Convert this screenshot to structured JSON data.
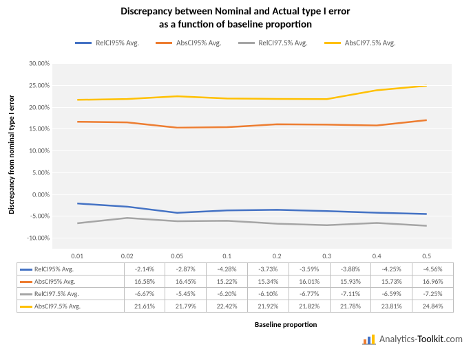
{
  "title_line1": "Discrepancy between Nominal and Actual type I error",
  "title_line2": "as a function of baseline proportion",
  "title_fontsize": 15,
  "y_axis_label": "Discrepancy from nominal type I error",
  "x_axis_label": "Baseline proportion",
  "background_color": "#ffffff",
  "plot_background": "#f2f2f2",
  "grid_color": "#ffffff",
  "tick_font_color": "#595959",
  "tick_fontsize": 10,
  "y_min": -12.5,
  "y_max": 30.0,
  "y_ticks": [
    -10.0,
    -5.0,
    0.0,
    5.0,
    10.0,
    15.0,
    20.0,
    25.0,
    30.0
  ],
  "y_tick_labels": [
    "-10.00%",
    "-5.00%",
    "0.00%",
    "5.00%",
    "10.00%",
    "15.00%",
    "20.00%",
    "25.00%",
    "30.00%"
  ],
  "categories": [
    "0.01",
    "0.02",
    "0.05",
    "0.1",
    "0.2",
    "0.3",
    "0.4",
    "0.5"
  ],
  "series": [
    {
      "name": "RelCI95% Avg.",
      "color": "#4472c4",
      "values": [
        -2.14,
        -2.87,
        -4.28,
        -3.73,
        -3.59,
        -3.88,
        -4.25,
        -4.56
      ],
      "display": [
        "-2.14%",
        "-2.87%",
        "-4.28%",
        "-3.73%",
        "-3.59%",
        "-3.88%",
        "-4.25%",
        "-4.56%"
      ]
    },
    {
      "name": "AbsCI95% Avg.",
      "color": "#ed7d31",
      "values": [
        16.58,
        16.45,
        15.22,
        15.34,
        16.01,
        15.93,
        15.73,
        16.96
      ],
      "display": [
        "16.58%",
        "16.45%",
        "15.22%",
        "15.34%",
        "16.01%",
        "15.93%",
        "15.73%",
        "16.96%"
      ]
    },
    {
      "name": "RelCI97.5% Avg.",
      "color": "#a5a5a5",
      "values": [
        -6.67,
        -5.45,
        -6.2,
        -6.1,
        -6.77,
        -7.11,
        -6.59,
        -7.25
      ],
      "display": [
        "-6.67%",
        "-5.45%",
        "-6.20%",
        "-6.10%",
        "-6.77%",
        "-7.11%",
        "-6.59%",
        "-7.25%"
      ]
    },
    {
      "name": "AbsCI97.5% Avg.",
      "color": "#ffc000",
      "values": [
        21.61,
        21.79,
        22.42,
        21.92,
        21.82,
        21.78,
        23.81,
        24.84
      ],
      "display": [
        "21.61%",
        "21.79%",
        "22.42%",
        "21.92%",
        "21.82%",
        "21.78%",
        "23.81%",
        "24.84%"
      ]
    }
  ],
  "brand_text_1": "Analytics-",
  "brand_text_2": "Toolkit",
  "brand_text_3": ".com",
  "brand_bar_colors": [
    "#ed7d31",
    "#4472c4",
    "#ffc000"
  ]
}
